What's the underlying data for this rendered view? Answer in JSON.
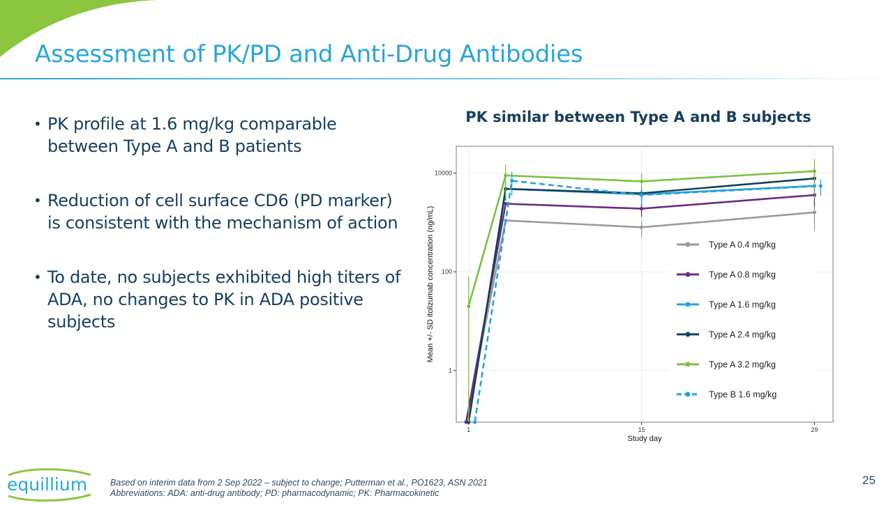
{
  "slide": {
    "title": "Assessment of PK/PD and Anti-Drug Antibodies",
    "bullets": [
      "PK profile at 1.6 mg/kg  comparable between Type A and B patients",
      "Reduction of cell surface CD6 (PD marker) is consistent with the mechanism of action",
      "To date, no subjects exhibited high titers of ADA, no changes to PK in ADA positive subjects"
    ],
    "footnote_line1": "Based on interim data from 2 Sep 2022 – subject to change; Putterman et al., PO1623, ASN 2021",
    "footnote_line2": "Abbreviations: ADA: anti-drug antibody; PD: pharmacodynamic; PK: Pharmacokinetic",
    "page_number": "25",
    "logo_text": "equillium",
    "colors": {
      "title": "#2aa6d8",
      "text": "#173f5c",
      "accent_green": "#8cc63f"
    }
  },
  "chart_data": {
    "type": "line",
    "title": "PK similar between Type A and B subjects",
    "xlabel": "Study day",
    "ylabel": "Mean +/- SD itolizumab concentration (ng/mL)",
    "y_scale": "log",
    "xlim": [
      0,
      30.5
    ],
    "ylim": [
      0.09,
      35000
    ],
    "x_ticks": [
      1,
      15,
      29
    ],
    "y_ticks": [
      1,
      100,
      10000
    ],
    "y_tick_labels": [
      "1",
      "100",
      "10000"
    ],
    "grid": true,
    "legend_position": "right-inside",
    "series": [
      {
        "name": "Type A 0.4 mg/kg",
        "color": "#9a9a9a",
        "dashed": false,
        "points": [
          [
            0.8,
            0.09
          ],
          [
            4,
            1100
          ],
          [
            15,
            800
          ],
          [
            29,
            1600
          ]
        ],
        "sd": [
          0,
          0,
          300,
          900
        ]
      },
      {
        "name": "Type A 0.8 mg/kg",
        "color": "#6b2d7e",
        "dashed": false,
        "points": [
          [
            0.8,
            0.09
          ],
          [
            4,
            2400
          ],
          [
            15,
            1900
          ],
          [
            29,
            3600
          ]
        ],
        "sd": [
          0,
          0,
          600,
          1500
        ]
      },
      {
        "name": "Type A 1.6 mg/kg",
        "color": "#29a3d6",
        "dashed": false,
        "points": [
          [
            1,
            0.09
          ],
          [
            4,
            4800
          ],
          [
            15,
            3700
          ],
          [
            29,
            5500
          ]
        ],
        "sd": [
          0,
          2000,
          1000,
          1500
        ]
      },
      {
        "name": "Type A 2.4 mg/kg",
        "color": "#163f5a",
        "dashed": false,
        "points": [
          [
            1,
            0.09
          ],
          [
            4,
            4800
          ],
          [
            15,
            3900
          ],
          [
            29,
            7800
          ]
        ],
        "sd": [
          0,
          2000,
          1100,
          2500
        ]
      },
      {
        "name": "Type A 3.2 mg/kg",
        "color": "#7bc043",
        "dashed": false,
        "points": [
          [
            1,
            20
          ],
          [
            4,
            9000
          ],
          [
            15,
            6800
          ],
          [
            29,
            11000
          ]
        ],
        "sd": [
          60,
          6000,
          3000,
          8000
        ]
      },
      {
        "name": "Type B 1.6 mg/kg",
        "color": "#29a3d6",
        "dashed": true,
        "points": [
          [
            1.5,
            0.09
          ],
          [
            4.5,
            7000
          ],
          [
            15,
            3600
          ],
          [
            29.5,
            5500
          ]
        ],
        "sd": [
          0,
          3500,
          1200,
          2000
        ]
      }
    ]
  }
}
